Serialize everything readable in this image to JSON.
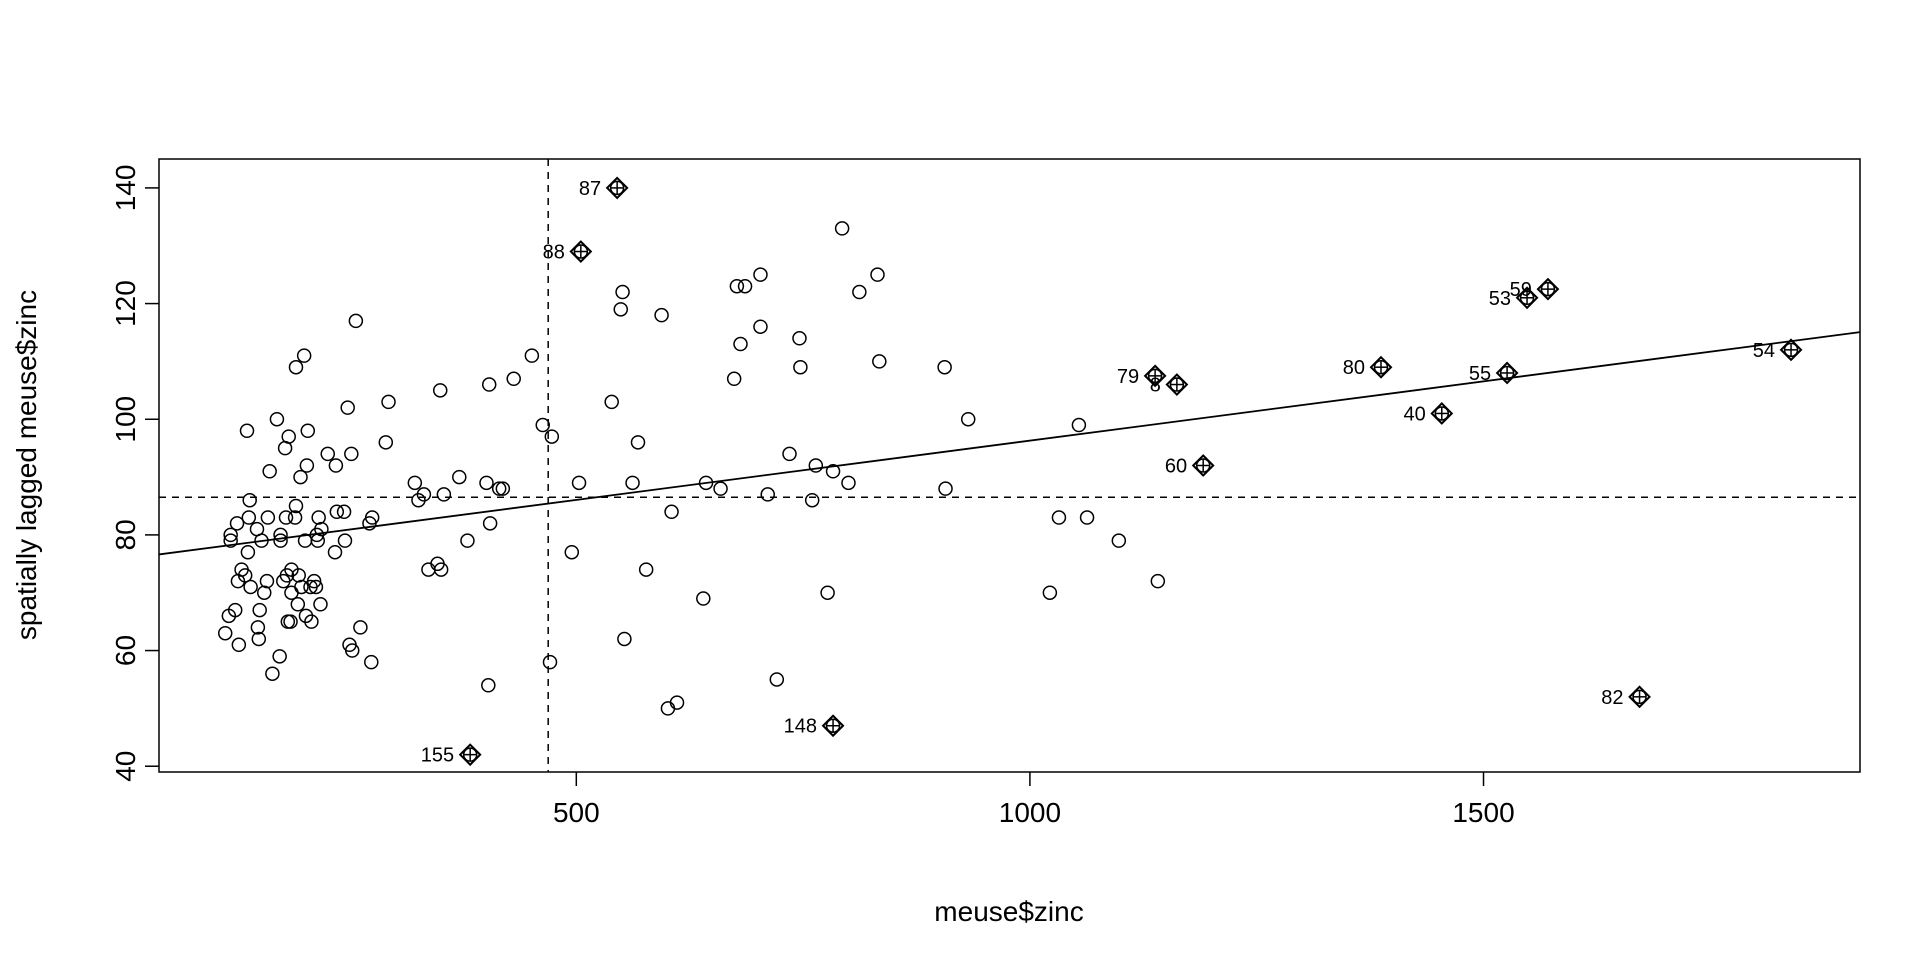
{
  "chart_data": {
    "type": "scatter",
    "title": "",
    "xlabel": "meuse$zinc",
    "ylabel": "spatially lagged meuse$zinc",
    "xlim": [
      40,
      1915
    ],
    "ylim": [
      39,
      145
    ],
    "x_ticks": [
      500,
      1000,
      1500
    ],
    "y_ticks": [
      40,
      60,
      80,
      100,
      120,
      140
    ],
    "grid": false,
    "legend": "none",
    "reference_lines": {
      "mean_x": 469,
      "mean_y": 86.5
    },
    "regression_line": {
      "intercept": 75.8,
      "slope": 0.0205
    },
    "points": [
      {
        "x": 113,
        "y": 63
      },
      {
        "x": 117,
        "y": 66
      },
      {
        "x": 119,
        "y": 79
      },
      {
        "x": 119,
        "y": 80
      },
      {
        "x": 124,
        "y": 67
      },
      {
        "x": 126,
        "y": 82
      },
      {
        "x": 127,
        "y": 72
      },
      {
        "x": 128,
        "y": 61
      },
      {
        "x": 131,
        "y": 74
      },
      {
        "x": 135,
        "y": 73
      },
      {
        "x": 137,
        "y": 98
      },
      {
        "x": 138,
        "y": 77
      },
      {
        "x": 139,
        "y": 83
      },
      {
        "x": 140,
        "y": 86
      },
      {
        "x": 141,
        "y": 71
      },
      {
        "x": 148,
        "y": 81
      },
      {
        "x": 149,
        "y": 64
      },
      {
        "x": 150,
        "y": 62
      },
      {
        "x": 151,
        "y": 67
      },
      {
        "x": 153,
        "y": 79
      },
      {
        "x": 156,
        "y": 70
      },
      {
        "x": 159,
        "y": 72
      },
      {
        "x": 160,
        "y": 83
      },
      {
        "x": 162,
        "y": 91
      },
      {
        "x": 165,
        "y": 56
      },
      {
        "x": 170,
        "y": 100
      },
      {
        "x": 173,
        "y": 59
      },
      {
        "x": 174,
        "y": 79
      },
      {
        "x": 174,
        "y": 80
      },
      {
        "x": 177,
        "y": 72
      },
      {
        "x": 179,
        "y": 95
      },
      {
        "x": 180,
        "y": 83
      },
      {
        "x": 181,
        "y": 73
      },
      {
        "x": 182,
        "y": 65
      },
      {
        "x": 183,
        "y": 97
      },
      {
        "x": 185,
        "y": 65
      },
      {
        "x": 186,
        "y": 74
      },
      {
        "x": 186,
        "y": 70
      },
      {
        "x": 190,
        "y": 83
      },
      {
        "x": 191,
        "y": 85
      },
      {
        "x": 191,
        "y": 109
      },
      {
        "x": 193,
        "y": 68
      },
      {
        "x": 194,
        "y": 73
      },
      {
        "x": 196,
        "y": 90
      },
      {
        "x": 197,
        "y": 71
      },
      {
        "x": 200,
        "y": 111
      },
      {
        "x": 201,
        "y": 79
      },
      {
        "x": 202,
        "y": 66
      },
      {
        "x": 203,
        "y": 92
      },
      {
        "x": 204,
        "y": 98
      },
      {
        "x": 207,
        "y": 71
      },
      {
        "x": 208,
        "y": 65
      },
      {
        "x": 211,
        "y": 72
      },
      {
        "x": 213,
        "y": 71
      },
      {
        "x": 214,
        "y": 80
      },
      {
        "x": 215,
        "y": 79
      },
      {
        "x": 216,
        "y": 83
      },
      {
        "x": 218,
        "y": 68
      },
      {
        "x": 219,
        "y": 81
      },
      {
        "x": 226,
        "y": 94
      },
      {
        "x": 234,
        "y": 77
      },
      {
        "x": 235,
        "y": 92
      },
      {
        "x": 236,
        "y": 84
      },
      {
        "x": 244,
        "y": 84
      },
      {
        "x": 245,
        "y": 79
      },
      {
        "x": 248,
        "y": 102
      },
      {
        "x": 250,
        "y": 61
      },
      {
        "x": 252,
        "y": 94
      },
      {
        "x": 253,
        "y": 60
      },
      {
        "x": 257,
        "y": 117
      },
      {
        "x": 262,
        "y": 64
      },
      {
        "x": 272,
        "y": 82
      },
      {
        "x": 274,
        "y": 58
      },
      {
        "x": 275,
        "y": 83
      },
      {
        "x": 290,
        "y": 96
      },
      {
        "x": 293,
        "y": 103
      },
      {
        "x": 322,
        "y": 89
      },
      {
        "x": 326,
        "y": 86
      },
      {
        "x": 332,
        "y": 87
      },
      {
        "x": 337,
        "y": 74
      },
      {
        "x": 347,
        "y": 75
      },
      {
        "x": 350,
        "y": 105
      },
      {
        "x": 351,
        "y": 74
      },
      {
        "x": 354,
        "y": 87
      },
      {
        "x": 371,
        "y": 90
      },
      {
        "x": 380,
        "y": 79
      },
      {
        "x": 401,
        "y": 89
      },
      {
        "x": 403,
        "y": 54
      },
      {
        "x": 404,
        "y": 106
      },
      {
        "x": 405,
        "y": 82
      },
      {
        "x": 415,
        "y": 88
      },
      {
        "x": 419,
        "y": 88
      },
      {
        "x": 431,
        "y": 107
      },
      {
        "x": 451,
        "y": 111
      },
      {
        "x": 463,
        "y": 99
      },
      {
        "x": 471,
        "y": 58
      },
      {
        "x": 473,
        "y": 97
      },
      {
        "x": 495,
        "y": 77
      },
      {
        "x": 503,
        "y": 89
      },
      {
        "x": 539,
        "y": 103
      },
      {
        "x": 549,
        "y": 119
      },
      {
        "x": 551,
        "y": 122
      },
      {
        "x": 553,
        "y": 62
      },
      {
        "x": 562,
        "y": 89
      },
      {
        "x": 568,
        "y": 96
      },
      {
        "x": 577,
        "y": 74
      },
      {
        "x": 594,
        "y": 118
      },
      {
        "x": 601,
        "y": 50
      },
      {
        "x": 605,
        "y": 84
      },
      {
        "x": 611,
        "y": 51
      },
      {
        "x": 640,
        "y": 69
      },
      {
        "x": 643,
        "y": 89
      },
      {
        "x": 659,
        "y": 88
      },
      {
        "x": 674,
        "y": 107
      },
      {
        "x": 677,
        "y": 123
      },
      {
        "x": 681,
        "y": 113
      },
      {
        "x": 686,
        "y": 123
      },
      {
        "x": 703,
        "y": 125
      },
      {
        "x": 703,
        "y": 116
      },
      {
        "x": 711,
        "y": 87
      },
      {
        "x": 721,
        "y": 55
      },
      {
        "x": 735,
        "y": 94
      },
      {
        "x": 746,
        "y": 114
      },
      {
        "x": 747,
        "y": 109
      },
      {
        "x": 760,
        "y": 86
      },
      {
        "x": 764,
        "y": 92
      },
      {
        "x": 777,
        "y": 70
      },
      {
        "x": 783,
        "y": 91
      },
      {
        "x": 793,
        "y": 133
      },
      {
        "x": 800,
        "y": 89
      },
      {
        "x": 812,
        "y": 122
      },
      {
        "x": 832,
        "y": 125
      },
      {
        "x": 834,
        "y": 110
      },
      {
        "x": 906,
        "y": 109
      },
      {
        "x": 907,
        "y": 88
      },
      {
        "x": 932,
        "y": 100
      },
      {
        "x": 1022,
        "y": 70
      },
      {
        "x": 1032,
        "y": 83
      },
      {
        "x": 1054,
        "y": 99
      },
      {
        "x": 1063,
        "y": 83
      },
      {
        "x": 1098,
        "y": 79
      },
      {
        "x": 1141,
        "y": 72
      }
    ],
    "influential_points": [
      {
        "label": "87",
        "x": 545,
        "y": 140,
        "label_side": "left"
      },
      {
        "label": "88",
        "x": 505,
        "y": 129,
        "label_side": "left"
      },
      {
        "label": "155",
        "x": 383,
        "y": 42,
        "label_side": "left"
      },
      {
        "label": "148",
        "x": 783,
        "y": 47,
        "label_side": "left"
      },
      {
        "label": "79",
        "x": 1138,
        "y": 107.5,
        "label_side": "left"
      },
      {
        "label": "8",
        "x": 1162,
        "y": 106,
        "label_side": "left"
      },
      {
        "label": "60",
        "x": 1191,
        "y": 92,
        "label_side": "left"
      },
      {
        "label": "80",
        "x": 1387,
        "y": 109,
        "label_side": "left"
      },
      {
        "label": "40",
        "x": 1454,
        "y": 101,
        "label_side": "left"
      },
      {
        "label": "55",
        "x": 1526,
        "y": 108,
        "label_side": "left"
      },
      {
        "label": "53",
        "x": 1548,
        "y": 121,
        "label_side": "left"
      },
      {
        "label": "59",
        "x": 1571,
        "y": 122.5,
        "label_side": "left"
      },
      {
        "label": "54",
        "x": 1839,
        "y": 112,
        "label_side": "left"
      },
      {
        "label": "82",
        "x": 1672,
        "y": 52,
        "label_side": "left"
      }
    ]
  }
}
